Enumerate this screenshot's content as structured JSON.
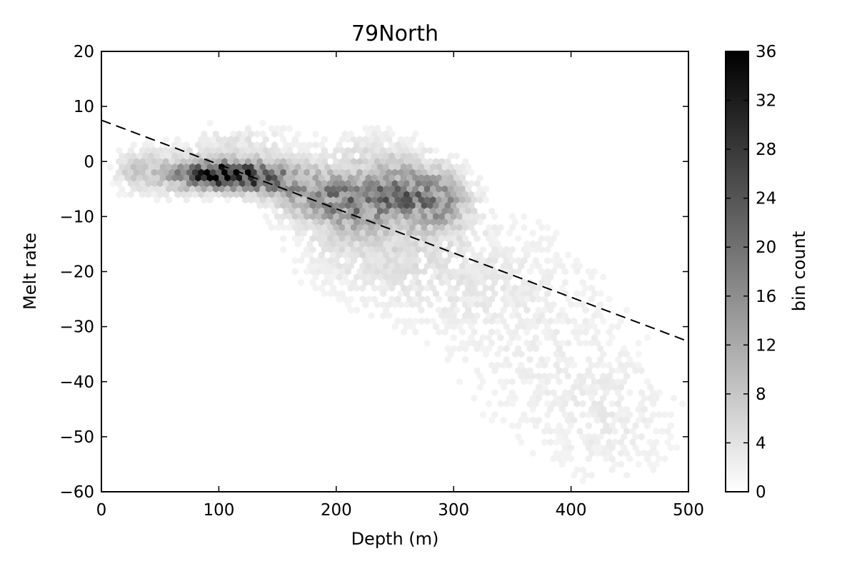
{
  "chart_data": {
    "type": "heatmap",
    "subtype": "hexbin",
    "title": "79North",
    "xlabel": "Depth (m)",
    "ylabel": "Melt rate",
    "xlim": [
      0,
      500
    ],
    "ylim": [
      -60,
      20
    ],
    "xticks": [
      0,
      100,
      200,
      300,
      400,
      500
    ],
    "xtick_labels": [
      "0",
      "100",
      "200",
      "300",
      "400",
      "500"
    ],
    "yticks": [
      20,
      10,
      0,
      -10,
      -20,
      -30,
      -40,
      -50,
      -60
    ],
    "ytick_labels": [
      "20",
      "10",
      "0",
      "−10",
      "−20",
      "−30",
      "−40",
      "−50",
      "−60"
    ],
    "grid": false,
    "colormap": "gray_r",
    "colorbar": {
      "label": "bin count",
      "range": [
        0,
        36
      ],
      "ticks": [
        0,
        4,
        8,
        12,
        16,
        20,
        24,
        28,
        32,
        36
      ],
      "tick_labels": [
        "0",
        "4",
        "8",
        "12",
        "16",
        "20",
        "24",
        "28",
        "32",
        "36"
      ]
    },
    "fit_line": {
      "style": "dashed",
      "color": "#000000",
      "points": [
        [
          0,
          7.5
        ],
        [
          500,
          -32.7
        ]
      ]
    },
    "clusters": [
      {
        "x": 100,
        "y": -2.5,
        "sx": 22,
        "sy": 1.6,
        "peak": 33
      },
      {
        "x": 140,
        "y": -3.0,
        "sx": 18,
        "sy": 2.0,
        "peak": 16
      },
      {
        "x": 55,
        "y": -2.0,
        "sx": 28,
        "sy": 3.0,
        "peak": 5
      },
      {
        "x": 30,
        "y": -1.5,
        "sx": 10,
        "sy": 2.0,
        "peak": 4
      },
      {
        "x": 175,
        "y": -5.5,
        "sx": 20,
        "sy": 3.0,
        "peak": 10
      },
      {
        "x": 210,
        "y": -7.5,
        "sx": 20,
        "sy": 3.5,
        "peak": 12
      },
      {
        "x": 255,
        "y": -6.0,
        "sx": 22,
        "sy": 3.5,
        "peak": 16
      },
      {
        "x": 290,
        "y": -7.0,
        "sx": 16,
        "sy": 3.5,
        "peak": 10
      },
      {
        "x": 230,
        "y": -14.0,
        "sx": 45,
        "sy": 6.0,
        "peak": 3
      },
      {
        "x": 300,
        "y": -20.0,
        "sx": 60,
        "sy": 8.0,
        "peak": 2
      },
      {
        "x": 380,
        "y": -35.0,
        "sx": 60,
        "sy": 12.0,
        "peak": 1.4
      },
      {
        "x": 440,
        "y": -48.0,
        "sx": 40,
        "sy": 8.0,
        "peak": 1.5
      },
      {
        "x": 120,
        "y": 3.0,
        "sx": 30,
        "sy": 3.0,
        "peak": 3
      },
      {
        "x": 230,
        "y": 1.5,
        "sx": 30,
        "sy": 3.0,
        "peak": 3
      }
    ]
  }
}
